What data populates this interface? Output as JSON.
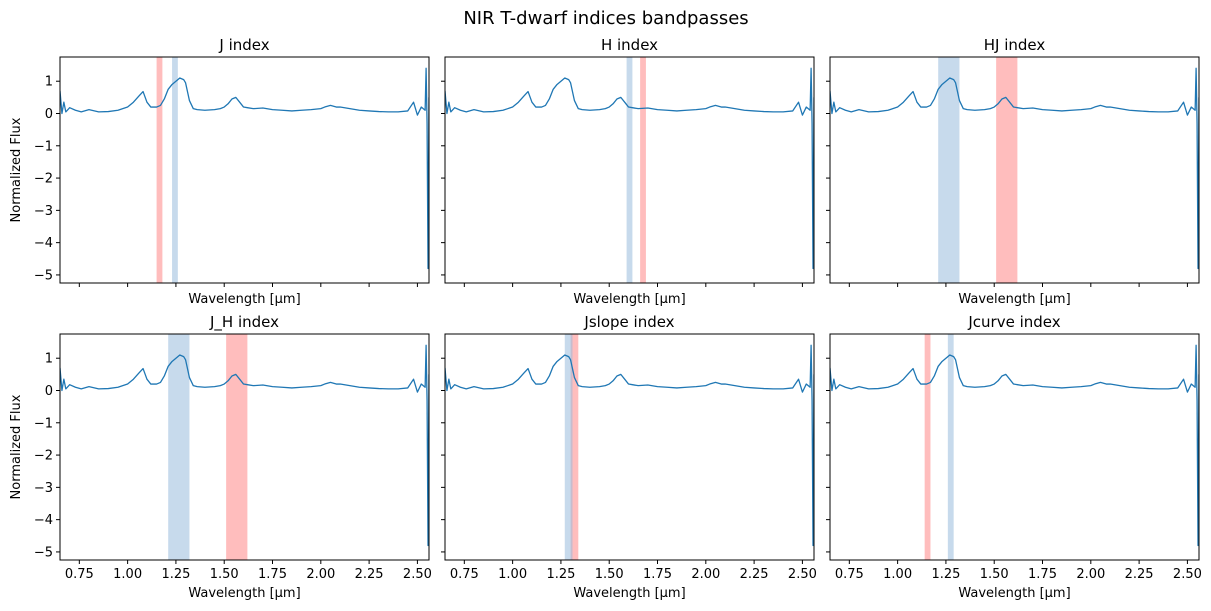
{
  "figure": {
    "suptitle": "NIR T-dwarf indices bandpasses"
  },
  "chart_data": {
    "type": "line",
    "shared": {
      "xlabel": "Wavelength [μm]",
      "ylabel": "Normalized Flux",
      "xlim": [
        0.65,
        2.56
      ],
      "ylim": [
        -5.25,
        1.75
      ],
      "xticks": [
        0.75,
        1.0,
        1.25,
        1.5,
        1.75,
        2.0,
        2.25,
        2.5
      ],
      "xtick_labels": [
        "0.75",
        "1.00",
        "1.25",
        "1.50",
        "1.75",
        "2.00",
        "2.25",
        "2.50"
      ],
      "yticks": [
        1,
        0,
        -1,
        -2,
        -3,
        -4,
        -5
      ],
      "ytick_labels": [
        "1",
        "0",
        "−1",
        "−2",
        "−3",
        "−4",
        "−5"
      ],
      "grid": false,
      "spectrum_color": "#1f77b4",
      "numerator_color": "#ff9999",
      "denominator_color": "#99bbdd",
      "spectrum": {
        "x": [
          0.65,
          0.66,
          0.67,
          0.68,
          0.7,
          0.73,
          0.76,
          0.8,
          0.85,
          0.9,
          0.95,
          1.0,
          1.03,
          1.06,
          1.08,
          1.1,
          1.12,
          1.15,
          1.17,
          1.19,
          1.21,
          1.23,
          1.25,
          1.27,
          1.29,
          1.3,
          1.32,
          1.34,
          1.36,
          1.4,
          1.45,
          1.48,
          1.5,
          1.52,
          1.54,
          1.56,
          1.58,
          1.6,
          1.62,
          1.65,
          1.7,
          1.75,
          1.8,
          1.85,
          1.9,
          1.95,
          2.0,
          2.02,
          2.05,
          2.08,
          2.1,
          2.15,
          2.2,
          2.25,
          2.3,
          2.35,
          2.4,
          2.45,
          2.48,
          2.5,
          2.52,
          2.54,
          2.545,
          2.55,
          2.555,
          2.56
        ],
        "y": [
          0.7,
          0.0,
          0.35,
          0.05,
          0.18,
          0.1,
          0.05,
          0.12,
          0.05,
          0.06,
          0.1,
          0.2,
          0.35,
          0.55,
          0.68,
          0.35,
          0.2,
          0.2,
          0.25,
          0.45,
          0.75,
          0.9,
          1.0,
          1.1,
          1.05,
          0.95,
          0.4,
          0.15,
          0.12,
          0.1,
          0.12,
          0.15,
          0.2,
          0.3,
          0.45,
          0.5,
          0.35,
          0.2,
          0.18,
          0.15,
          0.17,
          0.12,
          0.1,
          0.08,
          0.1,
          0.12,
          0.15,
          0.2,
          0.25,
          0.2,
          0.2,
          0.15,
          0.1,
          0.08,
          0.06,
          0.05,
          0.05,
          0.08,
          0.35,
          -0.05,
          0.2,
          0.1,
          1.4,
          -0.3,
          -4.8,
          0.5
        ]
      }
    },
    "panels": [
      {
        "title": "J index",
        "show_xticklabels": false,
        "show_yticklabels": true,
        "numerator": [
          1.15,
          1.18
        ],
        "denominator": [
          1.23,
          1.26
        ]
      },
      {
        "title": "H index",
        "show_xticklabels": false,
        "show_yticklabels": false,
        "numerator": [
          1.66,
          1.69
        ],
        "denominator": [
          1.59,
          1.62
        ]
      },
      {
        "title": "HJ index",
        "show_xticklabels": false,
        "show_yticklabels": false,
        "numerator": [
          1.51,
          1.62
        ],
        "denominator": [
          1.21,
          1.32
        ]
      },
      {
        "title": "J_H index",
        "show_xticklabels": true,
        "show_yticklabels": true,
        "numerator": [
          1.51,
          1.62
        ],
        "denominator": [
          1.21,
          1.32
        ]
      },
      {
        "title": "Jslope index",
        "show_xticklabels": true,
        "show_yticklabels": false,
        "numerator": [
          1.3,
          1.34
        ],
        "denominator": [
          1.27,
          1.31
        ]
      },
      {
        "title": "Jcurve index",
        "show_xticklabels": true,
        "show_yticklabels": false,
        "numerator": [
          1.14,
          1.17
        ],
        "denominator": [
          1.26,
          1.29
        ]
      }
    ]
  }
}
